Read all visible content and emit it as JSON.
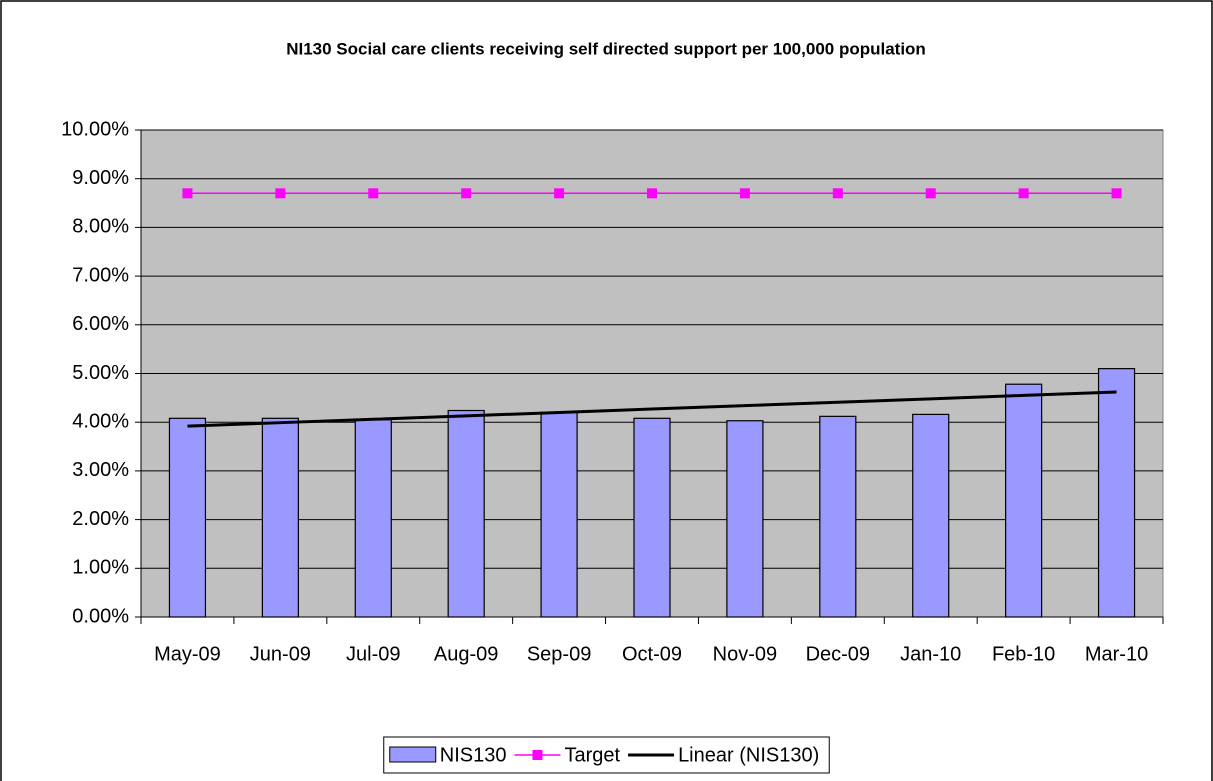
{
  "chart_data": {
    "type": "bar",
    "title": "NI130 Social care clients receiving self directed support per 100,000 population",
    "categories": [
      "May-09",
      "Jun-09",
      "Jul-09",
      "Aug-09",
      "Sep-09",
      "Oct-09",
      "Nov-09",
      "Dec-09",
      "Jan-10",
      "Feb-10",
      "Mar-10"
    ],
    "series": [
      {
        "name": "NIS130",
        "type": "bar",
        "color": "#9999ff",
        "values": [
          4.08,
          4.08,
          4.05,
          4.24,
          4.2,
          4.08,
          4.03,
          4.12,
          4.16,
          4.78,
          5.1
        ]
      },
      {
        "name": "Target",
        "type": "line",
        "color": "#ff00ff",
        "values": [
          8.7,
          8.7,
          8.7,
          8.7,
          8.7,
          8.7,
          8.7,
          8.7,
          8.7,
          8.7,
          8.7
        ]
      },
      {
        "name": "Linear (NIS130)",
        "type": "trend",
        "color": "#000000",
        "values": [
          3.92,
          3.99,
          4.06,
          4.13,
          4.2,
          4.27,
          4.34,
          4.41,
          4.48,
          4.55,
          4.62
        ]
      }
    ],
    "ylim": [
      0,
      10
    ],
    "yticks": [
      {
        "value": 0,
        "label": "0.00%"
      },
      {
        "value": 1,
        "label": "1.00%"
      },
      {
        "value": 2,
        "label": "2.00%"
      },
      {
        "value": 3,
        "label": "3.00%"
      },
      {
        "value": 4,
        "label": "4.00%"
      },
      {
        "value": 5,
        "label": "5.00%"
      },
      {
        "value": 6,
        "label": "6.00%"
      },
      {
        "value": 7,
        "label": "7.00%"
      },
      {
        "value": 8,
        "label": "8.00%"
      },
      {
        "value": 9,
        "label": "9.00%"
      },
      {
        "value": 10,
        "label": "10.00%"
      }
    ],
    "grid": true,
    "legend": "bottom"
  }
}
